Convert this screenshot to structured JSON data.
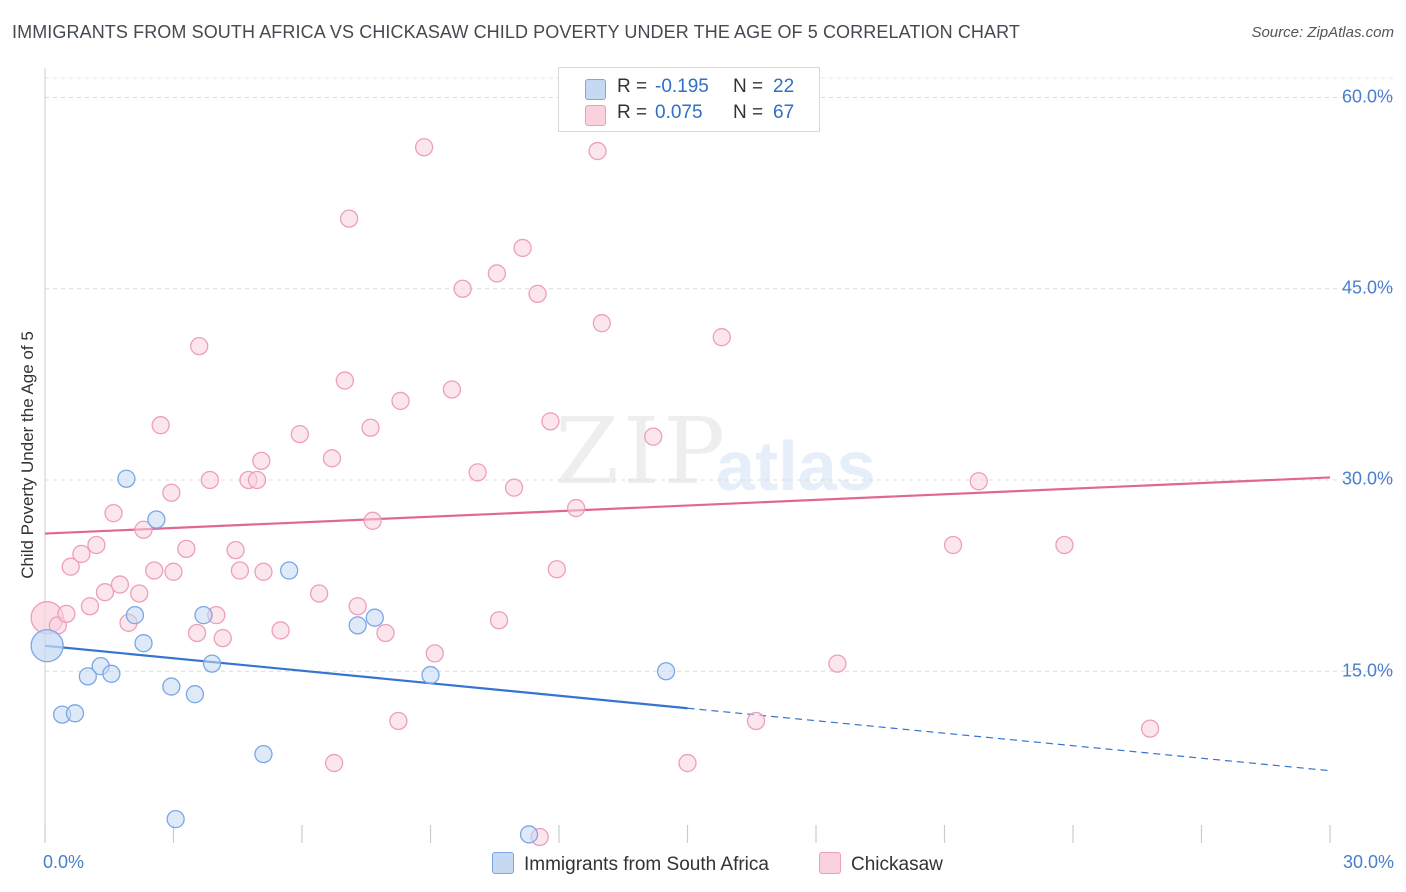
{
  "chart_data": {
    "type": "scatter",
    "title": "IMMIGRANTS FROM SOUTH AFRICA VS CHICKASAW CHILD POVERTY UNDER THE AGE OF 5 CORRELATION CHART",
    "source": "Source: ZipAtlas.com",
    "xlabel": "",
    "ylabel": "Child Poverty Under the Age of 5",
    "xlim": [
      0,
      30
    ],
    "ylim": [
      0,
      63
    ],
    "x_tick_labels": {
      "min": "0.0%",
      "max": "30.0%"
    },
    "y_ticks": [
      {
        "value": 15,
        "label": "15.0%"
      },
      {
        "value": 30,
        "label": "30.0%"
      },
      {
        "value": 45,
        "label": "45.0%"
      },
      {
        "value": 60,
        "label": "60.0%"
      }
    ],
    "watermark": {
      "left": "ZIP",
      "right": "atlas"
    },
    "legend": {
      "series": [
        {
          "r_label": "R =",
          "r_value": "-0.195",
          "n_label": "N =",
          "n_value": "22"
        },
        {
          "r_label": "R =",
          "r_value": "0.075",
          "n_label": "N =",
          "n_value": "67"
        }
      ]
    },
    "series": [
      {
        "name": "Immigrants from South Africa",
        "color": "#7aa7e6",
        "fill": "#c5d9f3",
        "trend": {
          "x0": 0,
          "y0": 17.0,
          "x1": 15.0,
          "y1": 12.1,
          "dash_to_x": 30,
          "dash_to_y": 7.2,
          "color": "#3575d0"
        },
        "points": [
          [
            0.05,
            17.0,
            "big"
          ],
          [
            0.4,
            11.6
          ],
          [
            0.7,
            11.7
          ],
          [
            1.0,
            14.6
          ],
          [
            1.3,
            15.4
          ],
          [
            1.55,
            14.8
          ],
          [
            1.9,
            30.1
          ],
          [
            2.1,
            19.4
          ],
          [
            2.3,
            17.2
          ],
          [
            2.6,
            26.9
          ],
          [
            2.95,
            13.8
          ],
          [
            3.05,
            3.4
          ],
          [
            3.5,
            13.2
          ],
          [
            3.7,
            19.4
          ],
          [
            3.9,
            15.6
          ],
          [
            5.1,
            8.5
          ],
          [
            5.7,
            22.9
          ],
          [
            7.3,
            18.6
          ],
          [
            7.7,
            19.2
          ],
          [
            9.0,
            14.7
          ],
          [
            11.3,
            2.2
          ],
          [
            14.5,
            15.0
          ]
        ]
      },
      {
        "name": "Chickasaw",
        "color": "#ee9fb8",
        "fill": "#f9d2de",
        "trend": {
          "x0": 0,
          "y0": 25.8,
          "x1": 30,
          "y1": 30.2,
          "color": "#e0688f"
        },
        "points": [
          [
            0.05,
            19.2,
            "big"
          ],
          [
            0.3,
            18.6
          ],
          [
            0.5,
            19.5
          ],
          [
            0.6,
            23.2
          ],
          [
            0.85,
            24.2
          ],
          [
            1.05,
            20.1
          ],
          [
            1.2,
            24.9
          ],
          [
            1.4,
            21.2
          ],
          [
            1.6,
            27.4
          ],
          [
            1.75,
            21.8
          ],
          [
            1.95,
            18.8
          ],
          [
            2.2,
            21.1
          ],
          [
            2.3,
            26.1
          ],
          [
            2.55,
            22.9
          ],
          [
            2.7,
            34.3
          ],
          [
            2.95,
            29.0
          ],
          [
            3.0,
            22.8
          ],
          [
            3.3,
            24.6
          ],
          [
            3.55,
            18.0
          ],
          [
            3.6,
            40.5
          ],
          [
            3.85,
            30.0
          ],
          [
            4.0,
            19.4
          ],
          [
            4.15,
            17.6
          ],
          [
            4.45,
            24.5
          ],
          [
            4.55,
            22.9
          ],
          [
            4.75,
            30.0
          ],
          [
            4.95,
            30.0
          ],
          [
            5.05,
            31.5
          ],
          [
            5.1,
            22.8
          ],
          [
            5.5,
            18.2
          ],
          [
            5.95,
            33.6
          ],
          [
            6.4,
            21.1
          ],
          [
            6.7,
            31.7
          ],
          [
            6.75,
            7.8
          ],
          [
            7.0,
            37.8
          ],
          [
            7.1,
            50.5
          ],
          [
            7.3,
            20.1
          ],
          [
            7.6,
            34.1
          ],
          [
            7.65,
            26.8
          ],
          [
            7.95,
            18.0
          ],
          [
            8.25,
            11.1
          ],
          [
            8.3,
            36.2
          ],
          [
            8.85,
            56.1
          ],
          [
            9.1,
            16.4
          ],
          [
            9.5,
            37.1
          ],
          [
            9.75,
            45.0
          ],
          [
            10.1,
            30.6
          ],
          [
            10.55,
            46.2
          ],
          [
            10.6,
            19.0
          ],
          [
            10.95,
            29.4
          ],
          [
            11.15,
            48.2
          ],
          [
            11.5,
            44.6
          ],
          [
            11.55,
            2.0
          ],
          [
            11.8,
            34.6
          ],
          [
            11.95,
            23.0
          ],
          [
            12.4,
            27.8
          ],
          [
            12.9,
            55.8
          ],
          [
            13.0,
            42.3
          ],
          [
            14.2,
            33.4
          ],
          [
            15.0,
            7.8
          ],
          [
            15.8,
            41.2
          ],
          [
            16.6,
            11.1
          ],
          [
            18.5,
            15.6
          ],
          [
            21.2,
            24.9
          ],
          [
            21.8,
            29.9
          ],
          [
            23.8,
            24.9
          ],
          [
            25.8,
            10.5
          ]
        ]
      }
    ]
  }
}
